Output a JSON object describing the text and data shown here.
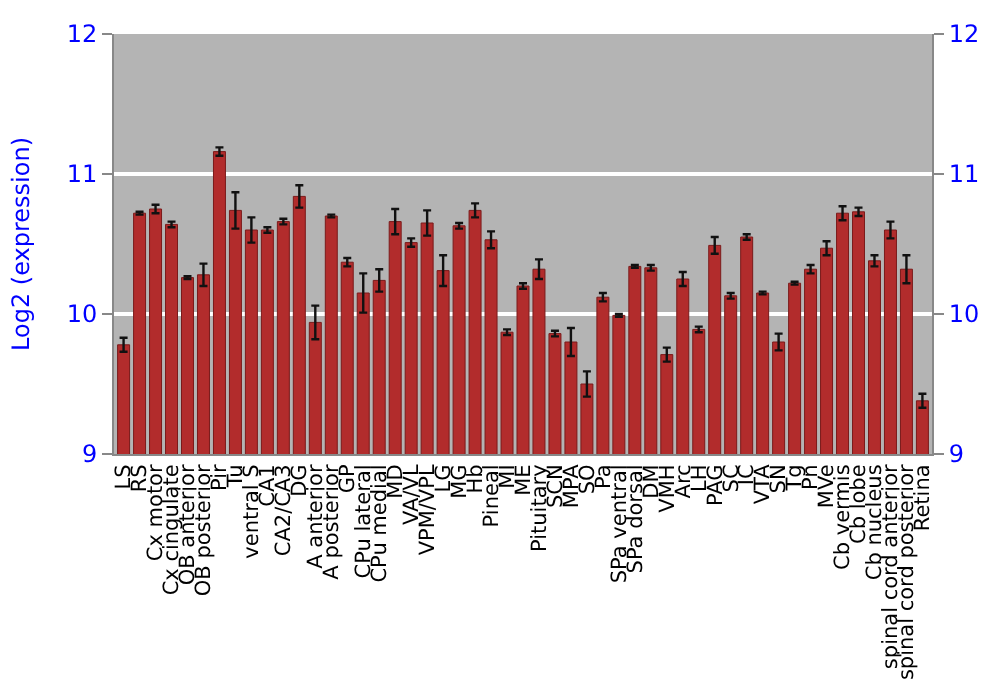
{
  "chart_data": {
    "type": "bar",
    "ylabel": "Log2 (expression)",
    "categories": [
      "LS",
      "RS",
      "Cx motor",
      "Cx cingulate",
      "OB anterior",
      "OB posterior",
      "Pir",
      "Tu",
      "ventral S",
      "CA1",
      "CA2/CA3",
      "DG",
      "A anterior",
      "A posterior",
      "GP",
      "CPu lateral",
      "CPu medial",
      "MD",
      "VA/VL",
      "VPM/VPL",
      "LG",
      "MG",
      "Hb",
      "Pineal",
      "MI",
      "ME",
      "Pituitary",
      "SCN",
      "MPA",
      "SO",
      "Pa",
      "SPa ventral",
      "SPa dorsal",
      "DM",
      "VMH",
      "Arc",
      "LH",
      "PAG",
      "SC",
      "IC",
      "VTA",
      "SN",
      "Tg",
      "Pn",
      "MVe",
      "Cb vermis",
      "Cb lobe",
      "Cb nucleus",
      "spinal cord anterior",
      "spinal cord posterior",
      "Retina"
    ],
    "values": [
      9.78,
      10.72,
      10.75,
      10.64,
      10.26,
      10.28,
      11.16,
      10.74,
      10.6,
      10.6,
      10.66,
      10.84,
      9.94,
      10.7,
      10.37,
      10.15,
      10.24,
      10.66,
      10.51,
      10.65,
      10.31,
      10.63,
      10.74,
      10.53,
      9.87,
      10.2,
      10.32,
      9.86,
      9.8,
      9.5,
      10.12,
      9.99,
      10.34,
      10.33,
      9.71,
      10.25,
      9.89,
      10.49,
      10.13,
      10.55,
      10.15,
      9.8,
      10.22,
      10.32,
      10.47,
      10.72,
      10.73,
      10.38,
      10.6,
      10.32,
      9.38
    ],
    "errors": [
      0.05,
      0.01,
      0.03,
      0.02,
      0.01,
      0.08,
      0.03,
      0.13,
      0.09,
      0.02,
      0.02,
      0.08,
      0.12,
      0.01,
      0.03,
      0.14,
      0.08,
      0.09,
      0.03,
      0.09,
      0.11,
      0.02,
      0.05,
      0.06,
      0.02,
      0.02,
      0.07,
      0.02,
      0.1,
      0.09,
      0.03,
      0.01,
      0.01,
      0.02,
      0.05,
      0.05,
      0.02,
      0.06,
      0.02,
      0.02,
      0.01,
      0.06,
      0.01,
      0.03,
      0.05,
      0.05,
      0.03,
      0.04,
      0.06,
      0.1,
      0.05
    ],
    "color": "#b22c2c",
    "ylim": [
      9,
      12
    ],
    "yticks": [
      9,
      10,
      11,
      12
    ],
    "y2lim": [
      9,
      12
    ],
    "y2ticks": [
      9,
      10,
      11,
      12
    ],
    "grid": "y"
  }
}
